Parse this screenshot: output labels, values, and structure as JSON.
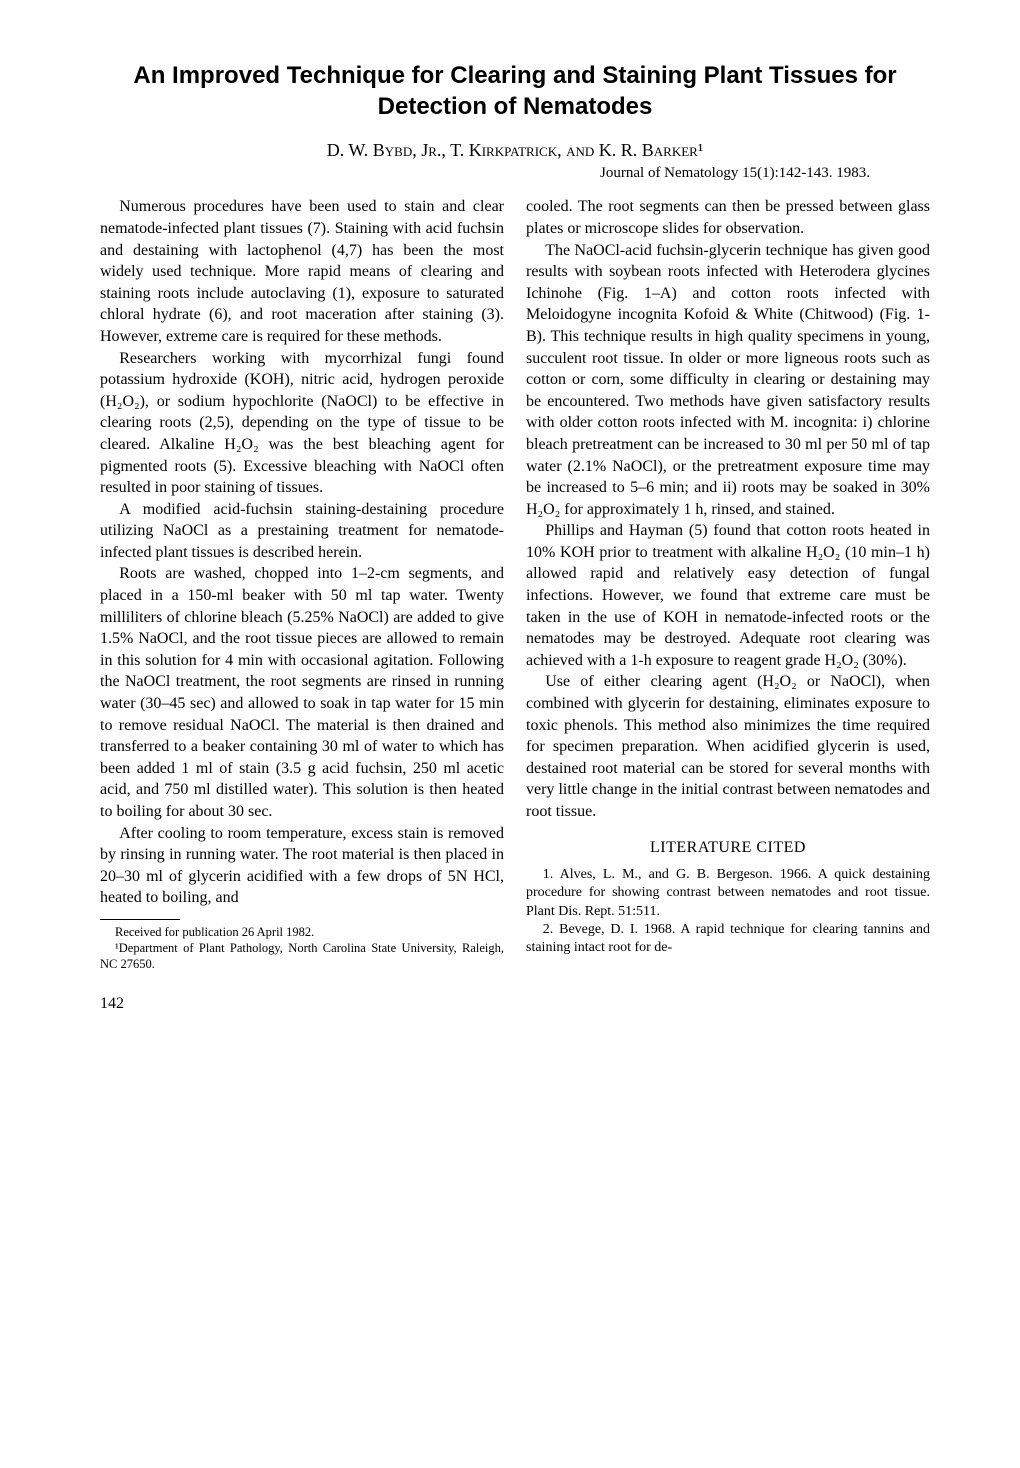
{
  "title": "An Improved Technique for Clearing and Staining Plant Tissues for Detection of Nematodes",
  "authors": "D. W. Bybd, Jr., T. Kirkpatrick, and K. R. Barker¹",
  "journal_ref": "Journal of Nematology 15(1):142-143. 1983.",
  "left_column": {
    "p1": "Numerous procedures have been used to stain and clear nematode-infected plant tissues (7). Staining with acid fuchsin and destaining with lactophenol (4,7) has been the most widely used technique. More rapid means of clearing and staining roots include autoclaving (1), exposure to saturated chloral hydrate (6), and root maceration after staining (3). However, extreme care is required for these methods.",
    "p2": "Researchers working with mycorrhizal fungi found potassium hydroxide (KOH), nitric acid, hydrogen peroxide (H₂O₂), or sodium hypochlorite (NaOCl) to be effective in clearing roots (2,5), depending on the type of tissue to be cleared. Alkaline H₂O₂ was the best bleaching agent for pigmented roots (5). Excessive bleaching with NaOCl often resulted in poor staining of tissues.",
    "p3": "A modified acid-fuchsin staining-destaining procedure utilizing NaOCl as a prestaining treatment for nematode-infected plant tissues is described herein.",
    "p4": "Roots are washed, chopped into 1–2-cm segments, and placed in a 150-ml beaker with 50 ml tap water. Twenty milliliters of chlorine bleach (5.25% NaOCl) are added to give 1.5% NaOCl, and the root tissue pieces are allowed to remain in this solution for 4 min with occasional agitation. Following the NaOCl treatment, the root segments are rinsed in running water (30–45 sec) and allowed to soak in tap water for 15 min to remove residual NaOCl. The material is then drained and transferred to a beaker containing 30 ml of water to which has been added 1 ml of stain (3.5 g acid fuchsin, 250 ml acetic acid, and 750 ml distilled water). This solution is then heated to boiling for about 30 sec.",
    "p5": "After cooling to room temperature, excess stain is removed by rinsing in running water. The root material is then placed in 20–30 ml of glycerin acidified with a few drops of 5N HCl, heated to boiling, and",
    "footnote1": "Received for publication 26 April 1982.",
    "footnote2": "¹Department of Plant Pathology, North Carolina State University, Raleigh, NC 27650.",
    "page_num": "142"
  },
  "right_column": {
    "p1_cont": "cooled. The root segments can then be pressed between glass plates or microscope slides for observation.",
    "p2": "The NaOCl-acid fuchsin-glycerin technique has given good results with soybean roots infected with Heterodera glycines Ichinohe (Fig. 1–A) and cotton roots infected with Meloidogyne incognita Kofoid & White (Chitwood) (Fig. 1-B). This technique results in high quality specimens in young, succulent root tissue. In older or more ligneous roots such as cotton or corn, some difficulty in clearing or destaining may be encountered. Two methods have given satisfactory results with older cotton roots infected with M. incognita: i) chlorine bleach pretreatment can be increased to 30 ml per 50 ml of tap water (2.1% NaOCl), or the pretreatment exposure time may be increased to 5–6 min; and ii) roots may be soaked in 30% H₂O₂ for approximately 1 h, rinsed, and stained.",
    "p3": "Phillips and Hayman (5) found that cotton roots heated in 10% KOH prior to treatment with alkaline H₂O₂ (10 min–1 h) allowed rapid and relatively easy detection of fungal infections. However, we found that extreme care must be taken in the use of KOH in nematode-infected roots or the nematodes may be destroyed. Adequate root clearing was achieved with a 1-h exposure to reagent grade H₂O₂ (30%).",
    "p4": "Use of either clearing agent (H₂O₂ or NaOCl), when combined with glycerin for destaining, eliminates exposure to toxic phenols. This method also minimizes the time required for specimen preparation. When acidified glycerin is used, destained root material can be stored for several months with very little change in the initial contrast between nematodes and root tissue.",
    "lit_cited_heading": "LITERATURE CITED",
    "ref1": "1. Alves, L. M., and G. B. Bergeson. 1966. A quick destaining procedure for showing contrast between nematodes and root tissue. Plant Dis. Rept. 51:511.",
    "ref2": "2. Bevege, D. I. 1968. A rapid technique for clearing tannins and staining intact root for de-"
  }
}
